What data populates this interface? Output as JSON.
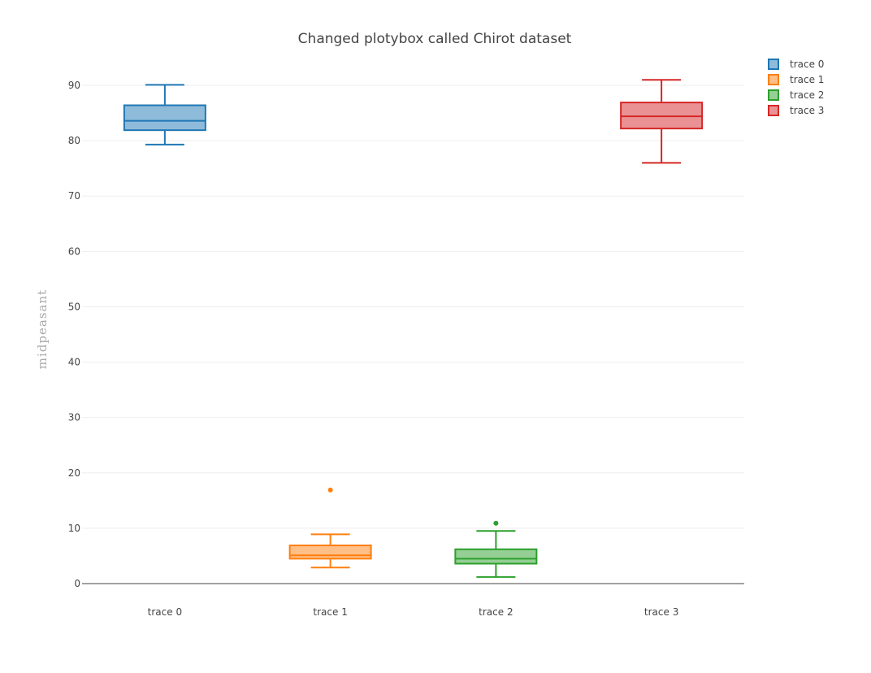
{
  "chart_data": {
    "type": "box",
    "title": "Changed plotybox called Chirot dataset",
    "xlabel": "",
    "ylabel": "midpeasant",
    "ylim": [
      0,
      95
    ],
    "yticks": [
      0,
      10,
      20,
      30,
      40,
      50,
      60,
      70,
      80,
      90
    ],
    "grid": true,
    "legend_position": "top-right",
    "categories": [
      "trace 0",
      "trace 1",
      "trace 2",
      "trace 3"
    ],
    "series": [
      {
        "name": "trace 0",
        "color": "#1f77b4",
        "fill": "#8fbbda",
        "min": 79.3,
        "q1": 81.9,
        "median": 83.6,
        "q3": 86.4,
        "max": 90.1,
        "outliers": []
      },
      {
        "name": "trace 1",
        "color": "#ff7f0e",
        "fill": "#ffbf86",
        "min": 2.9,
        "q1": 4.5,
        "median": 5.1,
        "q3": 6.9,
        "max": 8.9,
        "outliers": [
          16.9
        ]
      },
      {
        "name": "trace 2",
        "color": "#2ca02c",
        "fill": "#95cf95",
        "min": 1.2,
        "q1": 3.6,
        "median": 4.5,
        "q3": 6.2,
        "max": 9.5,
        "outliers": [
          10.9
        ]
      },
      {
        "name": "trace 3",
        "color": "#d62728",
        "fill": "#ea9293",
        "min": 76.0,
        "q1": 82.2,
        "median": 84.4,
        "q3": 86.9,
        "max": 91.0,
        "outliers": []
      }
    ]
  }
}
